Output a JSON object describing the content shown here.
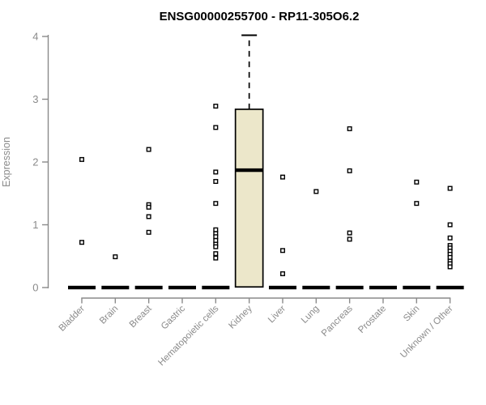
{
  "chart_data": {
    "type": "boxplot",
    "title": "ENSG00000255700 - RP11-305O6.2",
    "xlabel": "",
    "ylabel": "Expression",
    "ylim": [
      0,
      4
    ],
    "yticks": [
      0,
      1,
      2,
      3,
      4
    ],
    "grid": false,
    "legend": "none",
    "categories": [
      "Bladder",
      "Brain",
      "Breast",
      "Gastric",
      "Hematopoietic cells",
      "Kidney",
      "Liver",
      "Lung",
      "Pancreas",
      "Prostate",
      "Skin",
      "Unknown / Other"
    ],
    "boxes": [
      {
        "category": "Bladder",
        "q1": 0,
        "median": 0,
        "q3": 0,
        "whisker_low": 0,
        "whisker_high": 0,
        "points": [
          2.04,
          0.72
        ]
      },
      {
        "category": "Brain",
        "q1": 0,
        "median": 0,
        "q3": 0,
        "whisker_low": 0,
        "whisker_high": 0,
        "points": [
          0.49
        ]
      },
      {
        "category": "Breast",
        "q1": 0,
        "median": 0,
        "q3": 0,
        "whisker_low": 0,
        "whisker_high": 0,
        "points": [
          2.2,
          1.32,
          1.28,
          1.13,
          0.88
        ]
      },
      {
        "category": "Gastric",
        "q1": 0,
        "median": 0,
        "q3": 0,
        "whisker_low": 0,
        "whisker_high": 0,
        "points": []
      },
      {
        "category": "Hematopoietic cells",
        "q1": 0,
        "median": 0,
        "q3": 0,
        "whisker_low": 0,
        "whisker_high": 0,
        "points": [
          2.89,
          2.55,
          1.84,
          1.69,
          1.34,
          0.92,
          0.86,
          0.81,
          0.75,
          0.69,
          0.65,
          0.54,
          0.47
        ]
      },
      {
        "category": "Kidney",
        "q1": 0.01,
        "median": 1.87,
        "q3": 2.84,
        "whisker_low": 0.01,
        "whisker_high": 4.02,
        "points": []
      },
      {
        "category": "Liver",
        "q1": 0,
        "median": 0,
        "q3": 0,
        "whisker_low": 0,
        "whisker_high": 0,
        "points": [
          1.76,
          0.59,
          0.22
        ]
      },
      {
        "category": "Lung",
        "q1": 0,
        "median": 0,
        "q3": 0,
        "whisker_low": 0,
        "whisker_high": 0,
        "points": [
          1.53
        ]
      },
      {
        "category": "Pancreas",
        "q1": 0,
        "median": 0,
        "q3": 0,
        "whisker_low": 0,
        "whisker_high": 0,
        "points": [
          2.53,
          1.86,
          0.87,
          0.77
        ]
      },
      {
        "category": "Prostate",
        "q1": 0,
        "median": 0,
        "q3": 0,
        "whisker_low": 0,
        "whisker_high": 0,
        "points": []
      },
      {
        "category": "Skin",
        "q1": 0,
        "median": 0,
        "q3": 0,
        "whisker_low": 0,
        "whisker_high": 0,
        "points": [
          1.68,
          1.34
        ]
      },
      {
        "category": "Unknown / Other",
        "q1": 0,
        "median": 0,
        "q3": 0,
        "whisker_low": 0,
        "whisker_high": 0,
        "points": [
          1.58,
          1.0,
          0.79,
          0.67,
          0.63,
          0.58,
          0.53,
          0.48,
          0.42,
          0.38,
          0.33
        ]
      }
    ],
    "colors": {
      "box_fill": "#ECE7CA",
      "box_stroke": "#000000",
      "median": "#000000",
      "point": "#000000",
      "axis": "#8a8a8a",
      "tick_label": "#8a8a8a",
      "title": "#000000",
      "background": "#ffffff"
    }
  }
}
